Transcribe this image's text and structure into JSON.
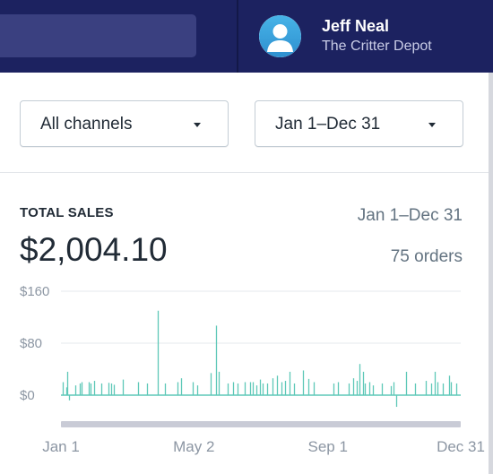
{
  "header": {
    "user_name": "Jeff Neal",
    "store_name": "The Critter Depot"
  },
  "filters": {
    "channel": "All channels",
    "date_range": "Jan 1–Dec 31"
  },
  "total_sales": {
    "title": "TOTAL SALES",
    "range": "Jan 1–Dec 31",
    "amount": "$2,004.10",
    "orders": "75 orders"
  },
  "colors": {
    "topbar": "#1c2260",
    "bars": "#5ec8b8",
    "text_muted": "#637381"
  },
  "chart_data": {
    "type": "bar",
    "ylim": [
      -20,
      165
    ],
    "grid": true,
    "y_ticks": [
      {
        "value": 160,
        "label": "$160"
      },
      {
        "value": 80,
        "label": "$80"
      },
      {
        "value": 0,
        "label": "$0"
      }
    ],
    "x_ticks": [
      {
        "day": 0,
        "label": "Jan 1"
      },
      {
        "day": 121,
        "label": "May 2"
      },
      {
        "day": 243,
        "label": "Sep 1"
      },
      {
        "day": 364,
        "label": "Dec 31"
      }
    ],
    "bars": [
      {
        "day": 2,
        "value": 20
      },
      {
        "day": 5,
        "value": 12
      },
      {
        "day": 6,
        "value": 36
      },
      {
        "day": 7,
        "value": -8
      },
      {
        "day": 13,
        "value": 15
      },
      {
        "day": 17,
        "value": 18
      },
      {
        "day": 19,
        "value": 20
      },
      {
        "day": 25,
        "value": 20
      },
      {
        "day": 27,
        "value": 18
      },
      {
        "day": 30,
        "value": 22
      },
      {
        "day": 37,
        "value": 18
      },
      {
        "day": 43,
        "value": 19
      },
      {
        "day": 46,
        "value": 18
      },
      {
        "day": 48,
        "value": 16
      },
      {
        "day": 56,
        "value": 24
      },
      {
        "day": 70,
        "value": 20
      },
      {
        "day": 78,
        "value": 18
      },
      {
        "day": 88,
        "value": 130
      },
      {
        "day": 95,
        "value": 18
      },
      {
        "day": 106,
        "value": 20
      },
      {
        "day": 109,
        "value": 26
      },
      {
        "day": 120,
        "value": 20
      },
      {
        "day": 124,
        "value": 15
      },
      {
        "day": 136,
        "value": 34
      },
      {
        "day": 141,
        "value": 107
      },
      {
        "day": 144,
        "value": 36
      },
      {
        "day": 152,
        "value": 18
      },
      {
        "day": 157,
        "value": 20
      },
      {
        "day": 161,
        "value": 18
      },
      {
        "day": 167,
        "value": 20
      },
      {
        "day": 172,
        "value": 20
      },
      {
        "day": 175,
        "value": 20
      },
      {
        "day": 178,
        "value": 15
      },
      {
        "day": 181,
        "value": 24
      },
      {
        "day": 184,
        "value": 18
      },
      {
        "day": 188,
        "value": 18
      },
      {
        "day": 193,
        "value": 26
      },
      {
        "day": 197,
        "value": 30
      },
      {
        "day": 201,
        "value": 20
      },
      {
        "day": 204,
        "value": 22
      },
      {
        "day": 208,
        "value": 36
      },
      {
        "day": 212,
        "value": 18
      },
      {
        "day": 220,
        "value": 38
      },
      {
        "day": 225,
        "value": 25
      },
      {
        "day": 230,
        "value": 20
      },
      {
        "day": 248,
        "value": 18
      },
      {
        "day": 252,
        "value": 20
      },
      {
        "day": 262,
        "value": 18
      },
      {
        "day": 266,
        "value": 26
      },
      {
        "day": 269,
        "value": 22
      },
      {
        "day": 272,
        "value": 48
      },
      {
        "day": 275,
        "value": 36
      },
      {
        "day": 277,
        "value": 18
      },
      {
        "day": 281,
        "value": 20
      },
      {
        "day": 284,
        "value": 15
      },
      {
        "day": 292,
        "value": 18
      },
      {
        "day": 300,
        "value": 14
      },
      {
        "day": 303,
        "value": 20
      },
      {
        "day": 305,
        "value": -18
      },
      {
        "day": 314,
        "value": 36
      },
      {
        "day": 322,
        "value": 18
      },
      {
        "day": 332,
        "value": 22
      },
      {
        "day": 337,
        "value": 18
      },
      {
        "day": 340,
        "value": 36
      },
      {
        "day": 343,
        "value": 20
      },
      {
        "day": 348,
        "value": 18
      },
      {
        "day": 353,
        "value": 30
      },
      {
        "day": 355,
        "value": 20
      },
      {
        "day": 360,
        "value": 18
      }
    ]
  }
}
